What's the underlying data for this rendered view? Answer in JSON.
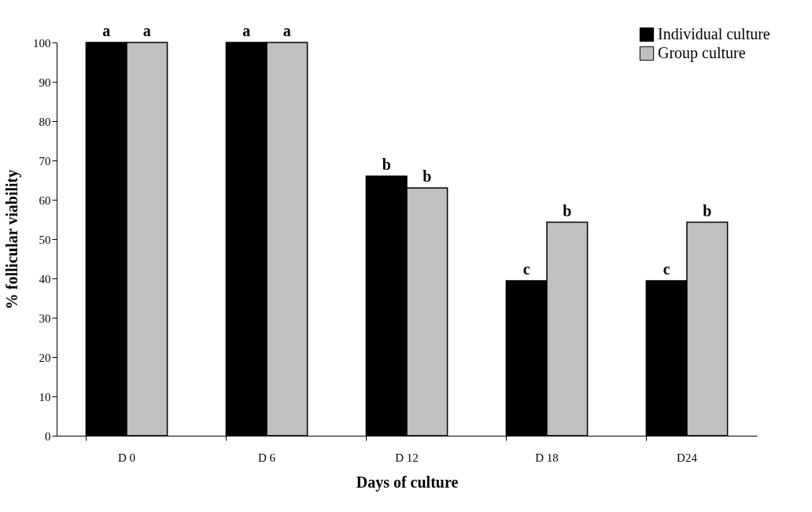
{
  "chart_data": {
    "type": "bar",
    "xlabel": "Days of culture",
    "ylabel": "% follicular viability",
    "categories": [
      "D 0",
      "D 6",
      "D 12",
      "D 18",
      "D24"
    ],
    "series": [
      {
        "name": "Individual culture",
        "color": "#000000",
        "values": [
          100,
          100,
          66,
          39.4,
          39.4
        ]
      },
      {
        "name": "Group culture",
        "color": "#c0c0c0",
        "values": [
          100,
          100,
          63,
          54.3,
          54.3
        ]
      }
    ],
    "ylim": [
      0,
      100
    ],
    "yticks": [
      0,
      10,
      20,
      30,
      40,
      50,
      60,
      70,
      80,
      90,
      100
    ],
    "grid": false,
    "legend": "top right",
    "annotations": [
      {
        "text": "a",
        "x": "D 0",
        "y": 100
      },
      {
        "text": "a",
        "x": "D 0",
        "y": 100
      },
      {
        "text": "a",
        "x": "D 6",
        "y": 100
      },
      {
        "text": "a",
        "x": "D 6",
        "y": 100
      },
      {
        "text": "b",
        "x": "D 12",
        "y": 66
      },
      {
        "text": "b",
        "x": "D 12",
        "y": 63
      },
      {
        "text": "c",
        "x": "D 18",
        "y": 39.4
      },
      {
        "text": "b",
        "x": "D 18",
        "y": 54.3
      },
      {
        "text": "c",
        "x": "D24",
        "y": 39.4
      },
      {
        "text": "b",
        "x": "D24",
        "y": 54.3
      }
    ]
  }
}
